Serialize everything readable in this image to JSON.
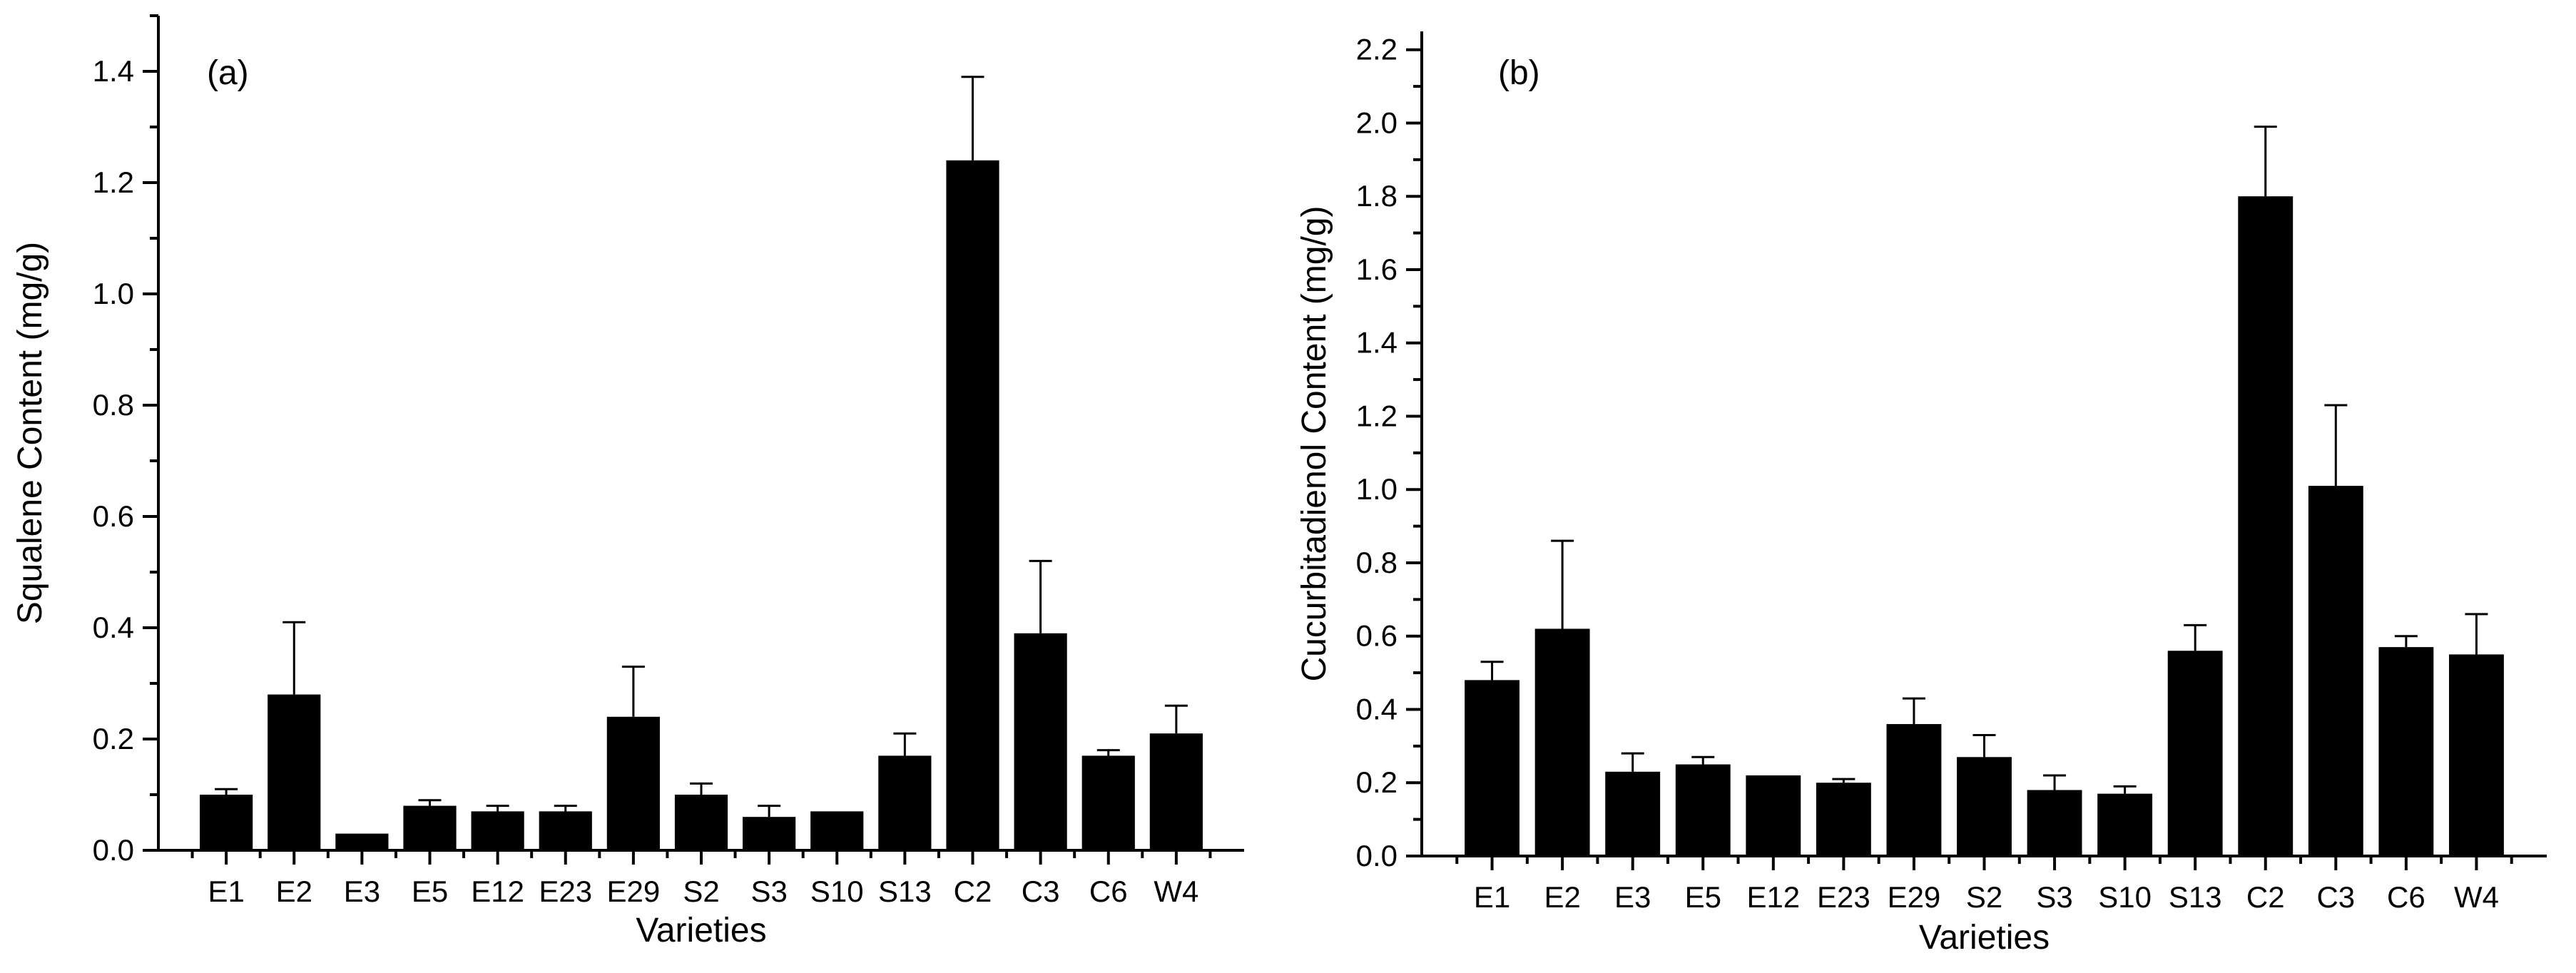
{
  "chart_data": [
    {
      "type": "bar",
      "panel_label": "(a)",
      "title": "",
      "xlabel": "Varieties",
      "ylabel": "Squalene Content (mg/g)",
      "ylim": [
        0,
        1.5
      ],
      "yticks": [
        0.0,
        0.2,
        0.4,
        0.6,
        0.8,
        1.0,
        1.2,
        1.4
      ],
      "ytick_labels": [
        "0.0",
        "0.2",
        "0.4",
        "0.6",
        "0.8",
        "1.0",
        "1.2",
        "1.4"
      ],
      "categories": [
        "E1",
        "E2",
        "E3",
        "E5",
        "E12",
        "E23",
        "E29",
        "S2",
        "S3",
        "S10",
        "S13",
        "C2",
        "C3",
        "C6",
        "W4"
      ],
      "values": [
        0.1,
        0.28,
        0.03,
        0.08,
        0.07,
        0.07,
        0.24,
        0.1,
        0.06,
        0.07,
        0.17,
        1.24,
        0.39,
        0.17,
        0.21
      ],
      "errors": [
        0.01,
        0.13,
        0.0,
        0.01,
        0.01,
        0.01,
        0.09,
        0.02,
        0.02,
        0.0,
        0.04,
        0.15,
        0.13,
        0.01,
        0.05
      ],
      "bar_color": "#000000"
    },
    {
      "type": "bar",
      "panel_label": "(b)",
      "title": "",
      "xlabel": "Varieties",
      "ylabel": "Cucurbitadienol Content (mg/g)",
      "ylim": [
        0,
        2.25
      ],
      "yticks": [
        0.0,
        0.2,
        0.4,
        0.6,
        0.8,
        1.0,
        1.2,
        1.4,
        1.6,
        1.8,
        2.0,
        2.2
      ],
      "ytick_labels": [
        "0.0",
        "0.2",
        "0.4",
        "0.6",
        "0.8",
        "1.0",
        "1.2",
        "1.4",
        "1.6",
        "1.8",
        "2.0",
        "2.2"
      ],
      "categories": [
        "E1",
        "E2",
        "E3",
        "E5",
        "E12",
        "E23",
        "E29",
        "S2",
        "S3",
        "S10",
        "S13",
        "C2",
        "C3",
        "C6",
        "W4"
      ],
      "values": [
        0.48,
        0.62,
        0.23,
        0.25,
        0.22,
        0.2,
        0.36,
        0.27,
        0.18,
        0.17,
        0.56,
        1.8,
        1.01,
        0.57,
        0.55
      ],
      "errors": [
        0.05,
        0.24,
        0.05,
        0.02,
        0.0,
        0.01,
        0.07,
        0.06,
        0.04,
        0.02,
        0.07,
        0.19,
        0.22,
        0.03,
        0.11
      ],
      "bar_color": "#000000"
    }
  ]
}
